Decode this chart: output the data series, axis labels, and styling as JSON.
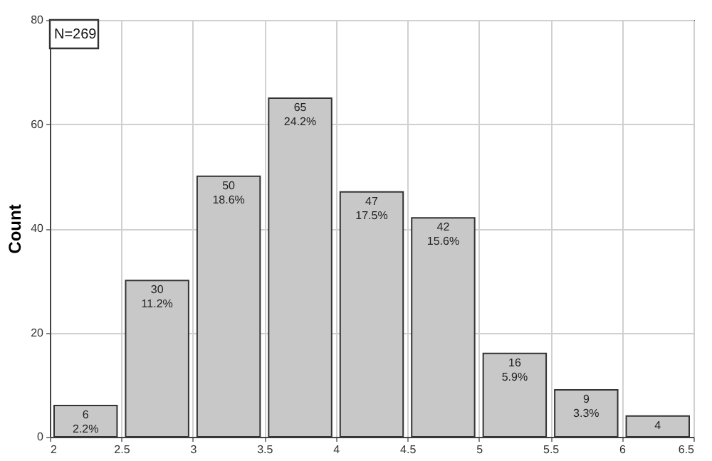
{
  "chart_data": {
    "type": "histogram",
    "ylabel": "Count",
    "bins": [
      2,
      2.5,
      3,
      3.5,
      4,
      4.5,
      5,
      5.5,
      6,
      6.5
    ],
    "values": [
      6,
      30,
      50,
      65,
      47,
      42,
      16,
      9,
      4
    ],
    "value_labels": [
      "6\n2.2%",
      "30\n11.2%",
      "50\n18.6%",
      "65\n24.2%",
      "47\n17.5%",
      "42\n15.6%",
      "16\n5.9%",
      "9\n3.3%",
      "4"
    ],
    "color": "#c8c8c8",
    "xlim": [
      2,
      6.5
    ],
    "xticks": [
      2,
      2.5,
      3,
      3.5,
      4,
      4.5,
      5,
      5.5,
      6,
      6.5
    ],
    "ylim": [
      0,
      80
    ],
    "yticks": [
      0,
      20,
      40,
      60,
      80
    ],
    "grid": true,
    "annotations": [
      "N=269"
    ]
  }
}
